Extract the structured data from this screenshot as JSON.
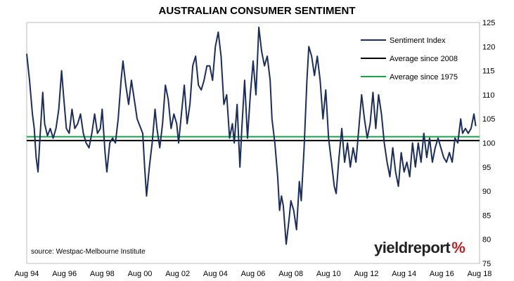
{
  "chart_data": {
    "type": "line",
    "title": "AUSTRALIAN CONSUMER SENTIMENT",
    "source": "source: Westpac-Melbourne Institute",
    "logo": "yieldreport",
    "logo_mark": "%",
    "ylim": [
      75,
      125
    ],
    "yticks": [
      75,
      80,
      85,
      90,
      95,
      100,
      105,
      110,
      115,
      120,
      125
    ],
    "xlim": [
      1994.6,
      2018.6
    ],
    "xticks": [
      {
        "x": 1994.6,
        "label": "Aug 94"
      },
      {
        "x": 1996.6,
        "label": "Aug 96"
      },
      {
        "x": 1998.6,
        "label": "Aug 98"
      },
      {
        "x": 2000.6,
        "label": "Aug 00"
      },
      {
        "x": 2002.6,
        "label": "Aug 02"
      },
      {
        "x": 2004.6,
        "label": "Aug 04"
      },
      {
        "x": 2006.6,
        "label": "Aug 06"
      },
      {
        "x": 2008.6,
        "label": "Aug 08"
      },
      {
        "x": 2010.6,
        "label": "Aug 10"
      },
      {
        "x": 2012.6,
        "label": "Aug 12"
      },
      {
        "x": 2014.6,
        "label": "Aug 14"
      },
      {
        "x": 2016.6,
        "label": "Aug 16"
      },
      {
        "x": 2018.6,
        "label": "Aug 18"
      }
    ],
    "legend_position": "top-right",
    "series": [
      {
        "name": "Sentiment Index",
        "color": "#1a2d5c",
        "points": [
          [
            1994.6,
            118.5
          ],
          [
            1994.75,
            113.0
          ],
          [
            1994.9,
            106.0
          ],
          [
            1995.0,
            103.0
          ],
          [
            1995.1,
            97.0
          ],
          [
            1995.2,
            94.0
          ],
          [
            1995.3,
            101.0
          ],
          [
            1995.45,
            110.5
          ],
          [
            1995.55,
            104.0
          ],
          [
            1995.7,
            101.5
          ],
          [
            1995.85,
            103.0
          ],
          [
            1996.0,
            101.0
          ],
          [
            1996.15,
            103.0
          ],
          [
            1996.3,
            107.0
          ],
          [
            1996.45,
            115.0
          ],
          [
            1996.55,
            110.0
          ],
          [
            1996.7,
            103.0
          ],
          [
            1996.85,
            102.0
          ],
          [
            1997.0,
            107.0
          ],
          [
            1997.15,
            103.0
          ],
          [
            1997.3,
            104.0
          ],
          [
            1997.45,
            106.0
          ],
          [
            1997.6,
            102.0
          ],
          [
            1997.75,
            100.0
          ],
          [
            1997.9,
            99.0
          ],
          [
            1998.05,
            102.0
          ],
          [
            1998.2,
            106.0
          ],
          [
            1998.35,
            102.0
          ],
          [
            1998.5,
            103.0
          ],
          [
            1998.6,
            107.0
          ],
          [
            1998.75,
            98.0
          ],
          [
            1998.85,
            94.0
          ],
          [
            1999.0,
            100.0
          ],
          [
            1999.15,
            101.0
          ],
          [
            1999.3,
            100.0
          ],
          [
            1999.45,
            105.0
          ],
          [
            1999.6,
            113.0
          ],
          [
            1999.7,
            117.0
          ],
          [
            1999.85,
            112.0
          ],
          [
            2000.0,
            108.0
          ],
          [
            2000.15,
            113.0
          ],
          [
            2000.3,
            109.0
          ],
          [
            2000.45,
            105.0
          ],
          [
            2000.55,
            104.0
          ],
          [
            2000.65,
            103.0
          ],
          [
            2000.75,
            102.0
          ],
          [
            2000.85,
            95.0
          ],
          [
            2000.95,
            89.0
          ],
          [
            2001.1,
            95.0
          ],
          [
            2001.25,
            100.0
          ],
          [
            2001.4,
            107.0
          ],
          [
            2001.5,
            103.0
          ],
          [
            2001.65,
            99.0
          ],
          [
            2001.8,
            104.0
          ],
          [
            2001.95,
            112.0
          ],
          [
            2002.1,
            109.0
          ],
          [
            2002.25,
            103.0
          ],
          [
            2002.4,
            106.0
          ],
          [
            2002.55,
            104.0
          ],
          [
            2002.65,
            100.0
          ],
          [
            2002.8,
            106.0
          ],
          [
            2002.95,
            112.0
          ],
          [
            2003.1,
            104.0
          ],
          [
            2003.25,
            108.0
          ],
          [
            2003.4,
            116.0
          ],
          [
            2003.55,
            118.0
          ],
          [
            2003.7,
            112.0
          ],
          [
            2003.85,
            111.0
          ],
          [
            2004.0,
            113.0
          ],
          [
            2004.15,
            116.0
          ],
          [
            2004.3,
            116.0
          ],
          [
            2004.45,
            113.0
          ],
          [
            2004.6,
            120.0
          ],
          [
            2004.75,
            123.0
          ],
          [
            2004.9,
            118.0
          ],
          [
            2005.05,
            108.0
          ],
          [
            2005.2,
            110.0
          ],
          [
            2005.35,
            101.0
          ],
          [
            2005.5,
            104.0
          ],
          [
            2005.6,
            100.0
          ],
          [
            2005.75,
            108.0
          ],
          [
            2005.9,
            95.0
          ],
          [
            2006.0,
            103.0
          ],
          [
            2006.15,
            113.0
          ],
          [
            2006.3,
            101.0
          ],
          [
            2006.45,
            110.0
          ],
          [
            2006.6,
            117.0
          ],
          [
            2006.75,
            110.0
          ],
          [
            2006.9,
            124.0
          ],
          [
            2007.05,
            119.0
          ],
          [
            2007.2,
            116.0
          ],
          [
            2007.35,
            118.0
          ],
          [
            2007.5,
            113.0
          ],
          [
            2007.6,
            105.0
          ],
          [
            2007.75,
            100.0
          ],
          [
            2007.9,
            93.0
          ],
          [
            2008.0,
            86.0
          ],
          [
            2008.1,
            89.0
          ],
          [
            2008.2,
            87.0
          ],
          [
            2008.35,
            79.0
          ],
          [
            2008.5,
            84.0
          ],
          [
            2008.6,
            88.0
          ],
          [
            2008.75,
            86.0
          ],
          [
            2008.9,
            82.0
          ],
          [
            2009.05,
            92.0
          ],
          [
            2009.15,
            88.0
          ],
          [
            2009.3,
            99.0
          ],
          [
            2009.45,
            113.0
          ],
          [
            2009.55,
            120.0
          ],
          [
            2009.7,
            118.0
          ],
          [
            2009.85,
            114.0
          ],
          [
            2010.0,
            118.0
          ],
          [
            2010.15,
            113.0
          ],
          [
            2010.3,
            105.0
          ],
          [
            2010.45,
            111.0
          ],
          [
            2010.6,
            101.0
          ],
          [
            2010.75,
            96.0
          ],
          [
            2010.9,
            91.0
          ],
          [
            2011.0,
            89.5
          ],
          [
            2011.15,
            97.0
          ],
          [
            2011.3,
            103.0
          ],
          [
            2011.45,
            96.0
          ],
          [
            2011.6,
            100.0
          ],
          [
            2011.75,
            95.0
          ],
          [
            2011.9,
            99.0
          ],
          [
            2012.05,
            96.0
          ],
          [
            2012.2,
            103.0
          ],
          [
            2012.35,
            110.0
          ],
          [
            2012.5,
            105.0
          ],
          [
            2012.65,
            101.0
          ],
          [
            2012.8,
            104.0
          ],
          [
            2012.95,
            110.5
          ],
          [
            2013.1,
            103.0
          ],
          [
            2013.25,
            110.0
          ],
          [
            2013.4,
            106.0
          ],
          [
            2013.55,
            100.0
          ],
          [
            2013.7,
            96.0
          ],
          [
            2013.85,
            93.0
          ],
          [
            2014.0,
            99.0
          ],
          [
            2014.15,
            94.0
          ],
          [
            2014.3,
            91.0
          ],
          [
            2014.45,
            98.0
          ],
          [
            2014.6,
            94.0
          ],
          [
            2014.75,
            96.0
          ],
          [
            2014.9,
            93.0
          ],
          [
            2015.05,
            100.0
          ],
          [
            2015.2,
            95.0
          ],
          [
            2015.35,
            100.0
          ],
          [
            2015.5,
            96.0
          ],
          [
            2015.65,
            102.0
          ],
          [
            2015.8,
            97.0
          ],
          [
            2015.95,
            101.0
          ],
          [
            2016.1,
            96.0
          ],
          [
            2016.25,
            99.0
          ],
          [
            2016.4,
            101.0
          ],
          [
            2016.55,
            99.0
          ],
          [
            2016.7,
            97.0
          ],
          [
            2016.85,
            96.0
          ],
          [
            2017.0,
            98.0
          ],
          [
            2017.15,
            96.0
          ],
          [
            2017.3,
            101.0
          ],
          [
            2017.45,
            100.0
          ],
          [
            2017.6,
            105.0
          ],
          [
            2017.7,
            102.0
          ],
          [
            2017.85,
            103.0
          ],
          [
            2018.0,
            102.0
          ],
          [
            2018.15,
            103.0
          ],
          [
            2018.3,
            106.0
          ],
          [
            2018.4,
            103.5
          ]
        ]
      },
      {
        "name": "Average since 2008",
        "color": "#000000",
        "value": 100.5
      },
      {
        "name": "Average since 1975",
        "color": "#1aa24a",
        "value": 101.3
      }
    ]
  }
}
